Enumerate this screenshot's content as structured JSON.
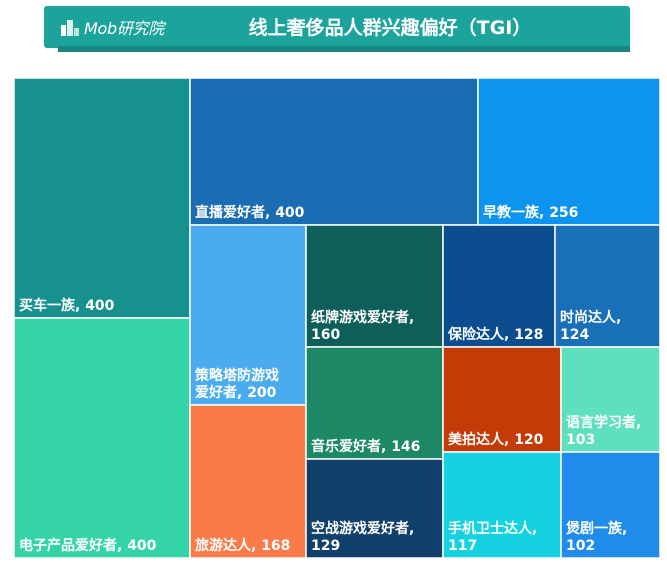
{
  "header": {
    "logo_text": "Mob研究院",
    "logo_icon": "building-icon",
    "bg_color": "#1ba39c"
  },
  "chart_data": {
    "type": "treemap",
    "title": "线上奢侈品人群兴趣偏好（TGI）",
    "items": [
      {
        "name": "买车一族",
        "value": 400,
        "label": "买车一族, 400",
        "color": "#16918d"
      },
      {
        "name": "电子产品爱好者",
        "value": 400,
        "label": "电子产品爱好者, 400",
        "color": "#34d4a8"
      },
      {
        "name": "直播爱好者",
        "value": 400,
        "label": "直播爱好者, 400",
        "color": "#1b6db3"
      },
      {
        "name": "早教一族",
        "value": 256,
        "label": "早教一族, 256",
        "color": "#0d94ef"
      },
      {
        "name": "策略塔防游戏爱好者",
        "value": 200,
        "label": [
          "策略塔防游戏",
          "爱好者, 200"
        ],
        "color": "#4aacee"
      },
      {
        "name": "旅游达人",
        "value": 168,
        "label": "旅游达人, 168",
        "color": "#fa7a48"
      },
      {
        "name": "纸牌游戏爱好者",
        "value": 160,
        "label": [
          "纸牌游戏爱好者,",
          "160"
        ],
        "color": "#0e5f59"
      },
      {
        "name": "音乐爱好者",
        "value": 146,
        "label": "音乐爱好者, 146",
        "color": "#1c8866"
      },
      {
        "name": "空战游戏爱好者",
        "value": 129,
        "label": [
          "空战游戏爱好者,",
          "129"
        ],
        "color": "#11406a"
      },
      {
        "name": "保险达人",
        "value": 128,
        "label": "保险达人, 128",
        "color": "#0b4d8e"
      },
      {
        "name": "时尚达人",
        "value": 124,
        "label": [
          "时尚达人,",
          "124"
        ],
        "color": "#1970b8"
      },
      {
        "name": "美拍达人",
        "value": 120,
        "label": "美拍达人, 120",
        "color": "#c43b07"
      },
      {
        "name": "语言学习者",
        "value": 103,
        "label": [
          "语言学习者,",
          "103"
        ],
        "color": "#5edfbe"
      },
      {
        "name": "手机卫士达人",
        "value": 117,
        "label": [
          "手机卫士达人,",
          "117"
        ],
        "color": "#15d2e0"
      },
      {
        "name": "煲剧一族",
        "value": 102,
        "label": [
          "煲剧一族,",
          "102"
        ],
        "color": "#1f8cec"
      }
    ]
  }
}
